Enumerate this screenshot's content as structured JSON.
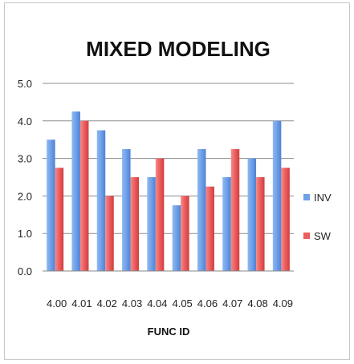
{
  "chart_data": {
    "type": "bar",
    "title": "MIXED MODELING",
    "xlabel": "FUNC ID",
    "ylabel": "",
    "ylim": [
      0,
      5
    ],
    "yticks": [
      "0.0",
      "1.0",
      "2.0",
      "3.0",
      "4.0",
      "5.0"
    ],
    "grid": true,
    "legend_position": "right",
    "categories": [
      "4.00",
      "4.01",
      "4.02",
      "4.03",
      "4.04",
      "4.05",
      "4.06",
      "4.07",
      "4.08",
      "4.09"
    ],
    "series": [
      {
        "name": "INV",
        "color": "#6fa0e8",
        "values": [
          3.5,
          4.25,
          3.75,
          3.25,
          2.5,
          1.75,
          3.25,
          2.5,
          3.0,
          4.0
        ]
      },
      {
        "name": "SW",
        "color": "#ec5d5d",
        "values": [
          2.75,
          4.0,
          2.0,
          2.5,
          3.0,
          2.0,
          2.25,
          3.25,
          2.5,
          2.75
        ]
      }
    ]
  }
}
